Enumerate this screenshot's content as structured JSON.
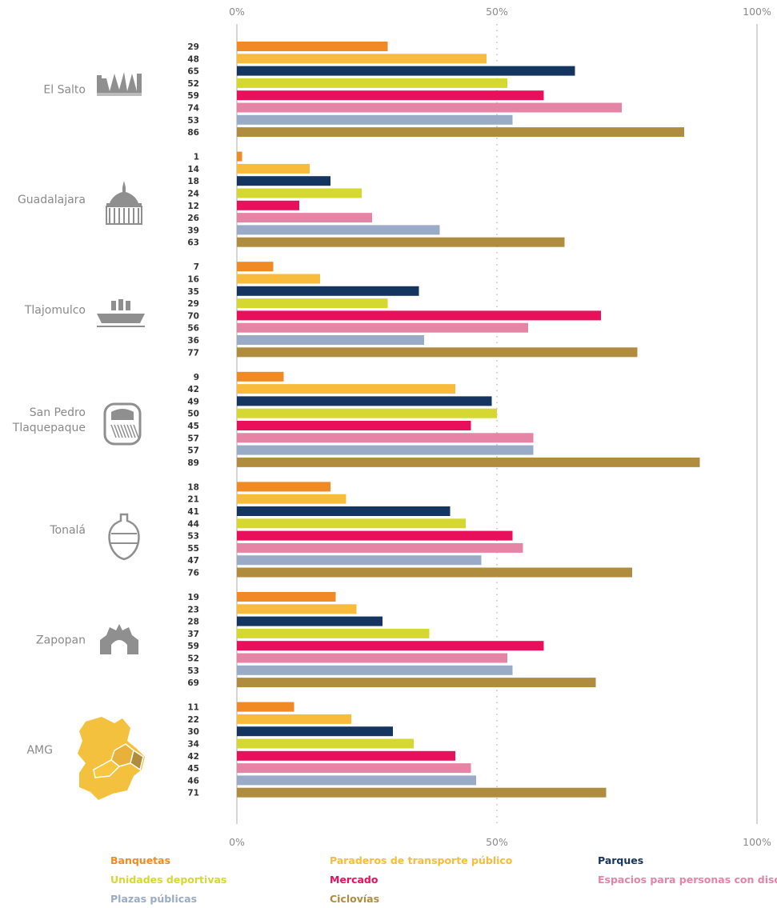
{
  "chart_data": {
    "type": "bar",
    "orientation": "horizontal",
    "xlim": [
      0,
      100
    ],
    "x_ticks": [
      "0%",
      "50%",
      "100%"
    ],
    "grid": "dotted line at 50%",
    "legend_position": "bottom",
    "categories": [
      "El Salto",
      "Guadalajara",
      "Tlajomulco",
      "San Pedro Tlaquepaque",
      "Tonalá",
      "Zapopan",
      "AMG"
    ],
    "category_label_lines": [
      [
        "El Salto"
      ],
      [
        "Guadalajara"
      ],
      [
        "Tlajomulco"
      ],
      [
        "San Pedro",
        "Tlaquepaque"
      ],
      [
        "Tonalá"
      ],
      [
        "Zapopan"
      ],
      [
        "AMG"
      ]
    ],
    "category_icons": [
      "waterfall-icon",
      "cathedral-icon",
      "boat-icon",
      "ceramic-plate-icon",
      "vase-icon",
      "arch-icon",
      "map-icon"
    ],
    "series": [
      {
        "name": "Banquetas",
        "color": "#f08a24",
        "values": [
          29,
          1,
          7,
          9,
          18,
          19,
          11
        ]
      },
      {
        "name": "Paraderos de transporte público",
        "color": "#f9bb3b",
        "values": [
          48,
          14,
          16,
          42,
          21,
          23,
          22
        ]
      },
      {
        "name": "Parques",
        "color": "#13355f",
        "values": [
          65,
          18,
          35,
          49,
          41,
          28,
          30
        ]
      },
      {
        "name": "Unidades deportivas",
        "color": "#d6d832",
        "values": [
          52,
          24,
          29,
          50,
          44,
          37,
          34
        ]
      },
      {
        "name": "Mercado",
        "color": "#e8105a",
        "values": [
          59,
          12,
          70,
          45,
          53,
          59,
          42
        ]
      },
      {
        "name": "Espacios para personas con discapacidad",
        "color": "#e584a5",
        "values": [
          74,
          26,
          56,
          57,
          55,
          52,
          45
        ]
      },
      {
        "name": "Plazas públicas",
        "color": "#9aabc7",
        "values": [
          53,
          39,
          36,
          57,
          47,
          53,
          46
        ]
      },
      {
        "name": "Ciclovías",
        "color": "#b08c3e",
        "values": [
          86,
          63,
          77,
          89,
          76,
          69,
          71
        ]
      }
    ],
    "legend_layout": [
      [
        0,
        3,
        6
      ],
      [
        1,
        4,
        7
      ],
      [
        2,
        5
      ]
    ]
  }
}
